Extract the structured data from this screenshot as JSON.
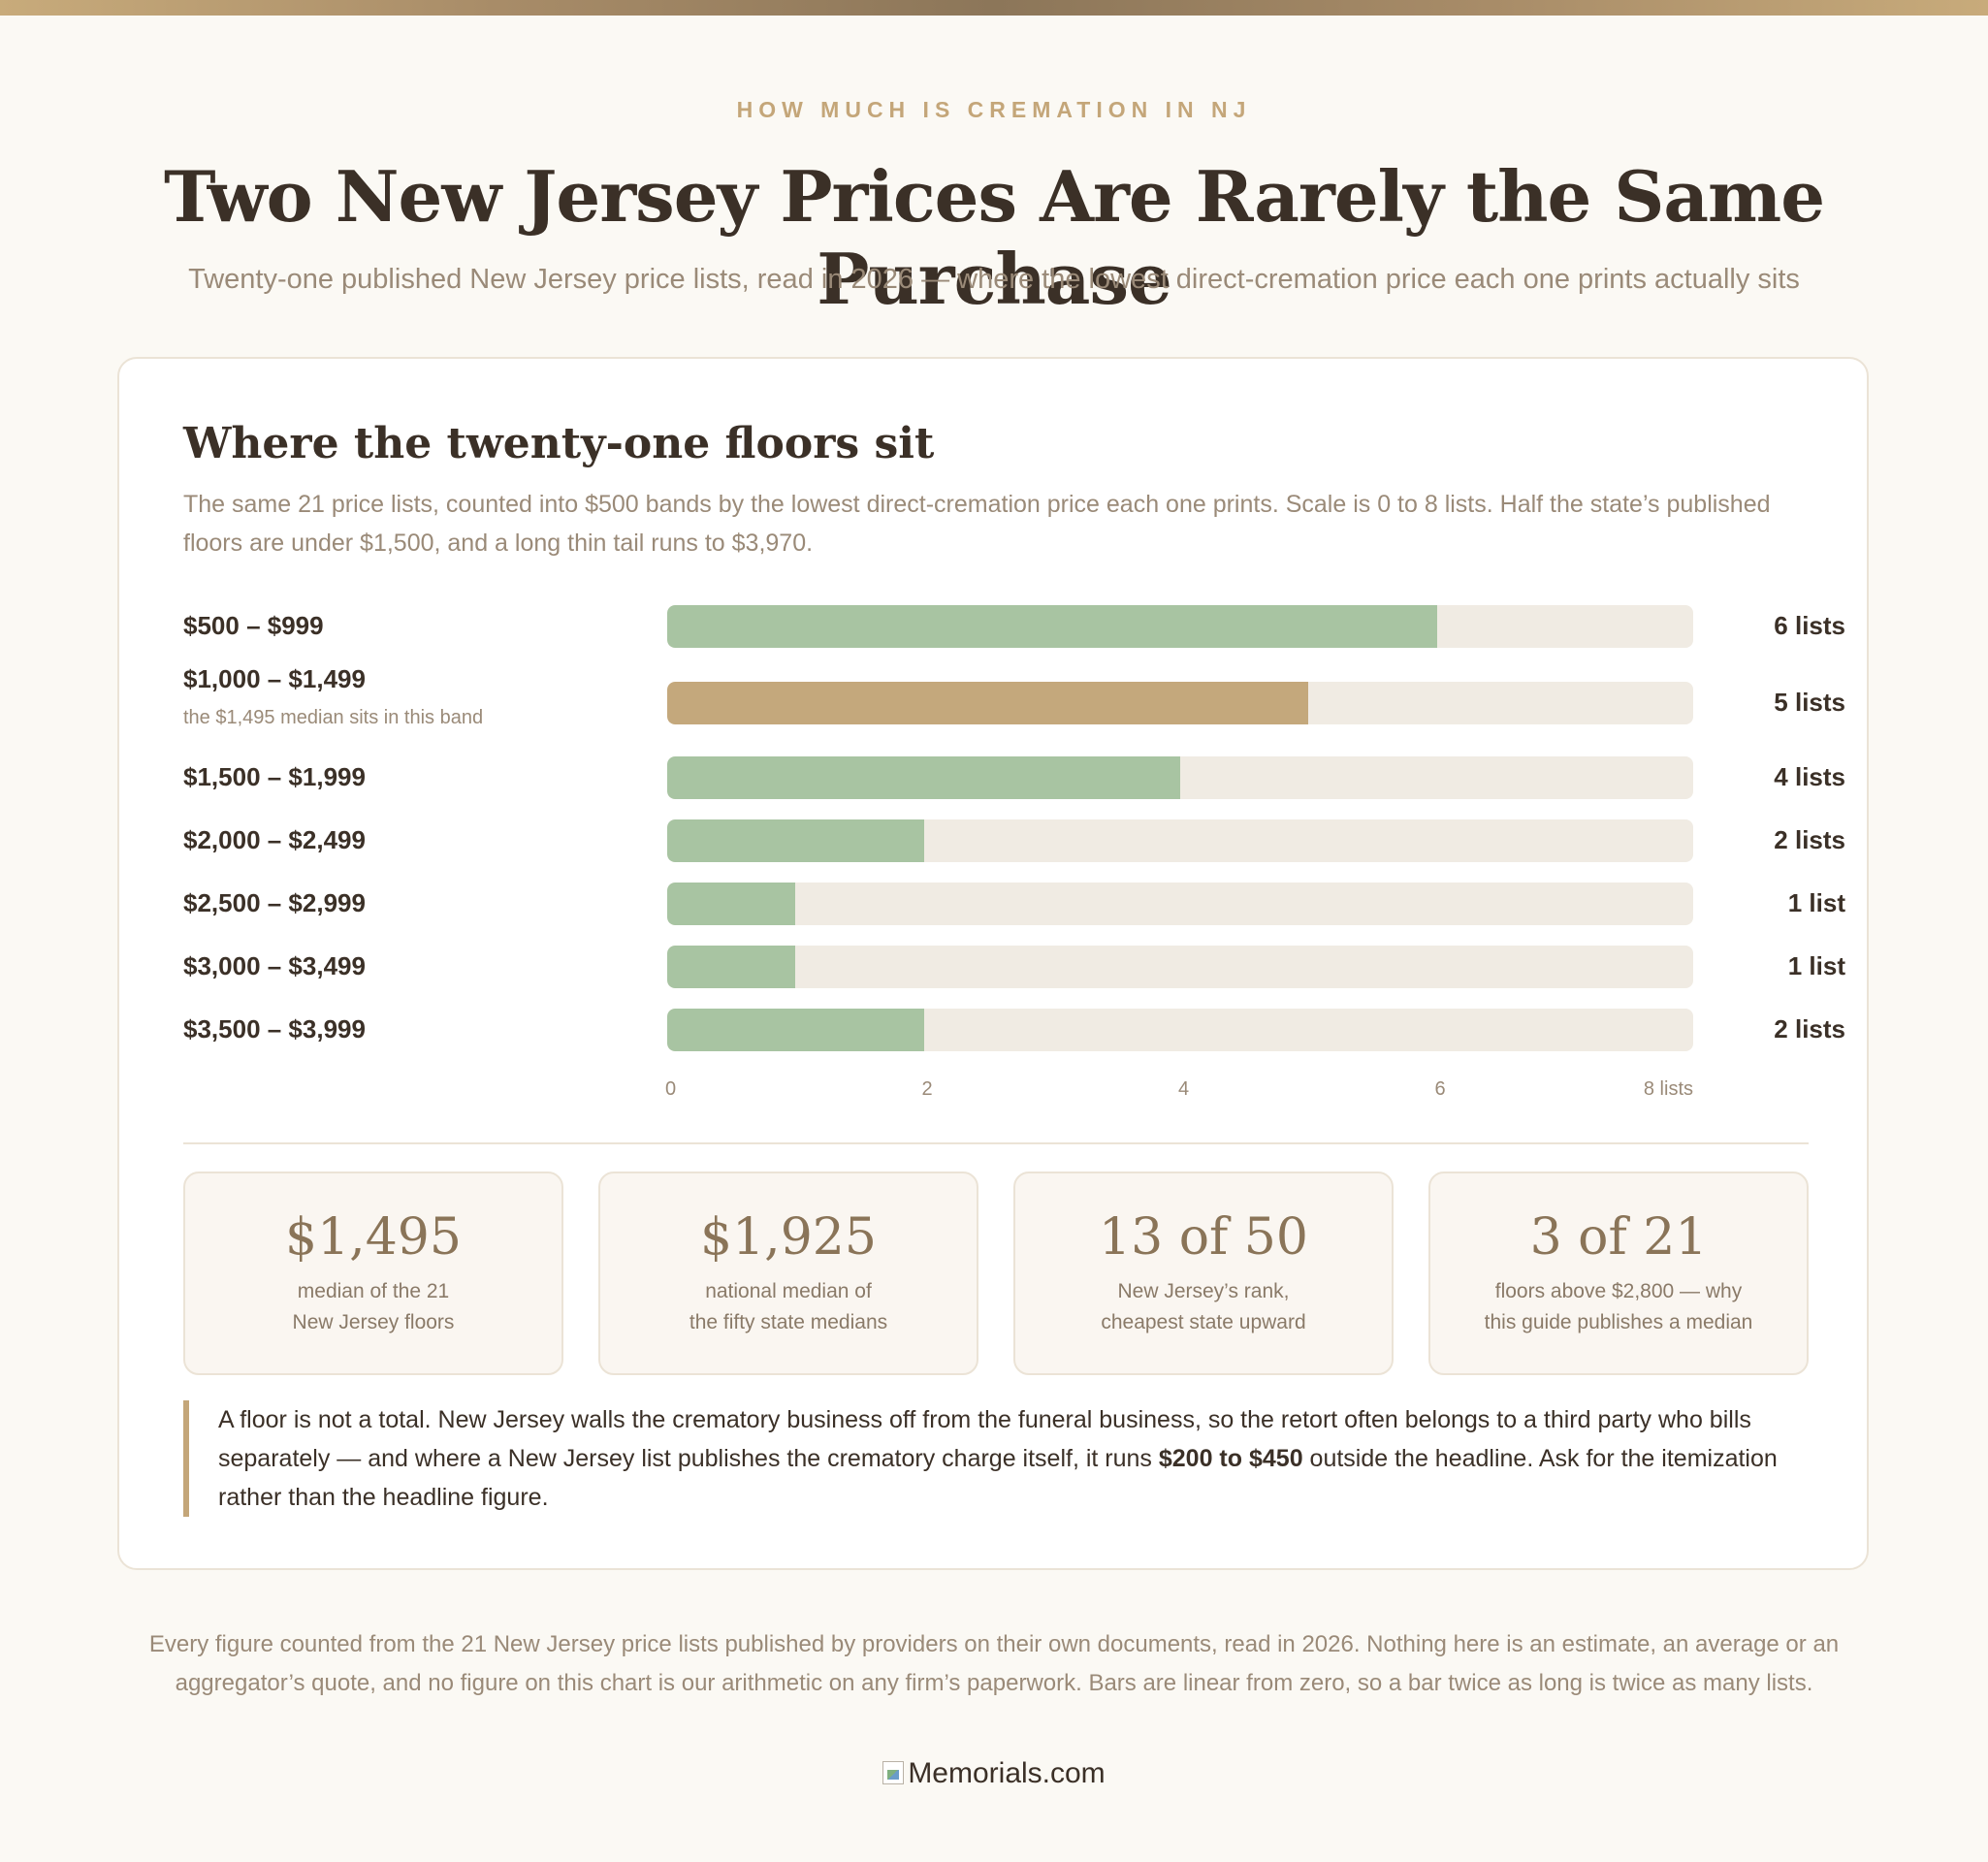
{
  "header": {
    "eyebrow": "HOW MUCH IS CREMATION IN NJ",
    "title": "Two New Jersey Prices Are Rarely the Same Purchase",
    "subtitle": "Twenty-one published New Jersey price lists, read in 2026 — where the lowest direct-cremation price each one prints actually sits"
  },
  "card": {
    "title": "Where the twenty-one floors sit",
    "description": "The same 21 price lists, counted into $500 bands by the lowest direct-cremation price each one prints. Scale is 0 to 8 lists. Half the state’s published floors are under $1,500, and a long thin tail runs to $3,970."
  },
  "chart_data": {
    "type": "bar",
    "orientation": "horizontal",
    "categories": [
      "$500 – $999",
      "$1,000 – $1,499",
      "$1,500 – $1,999",
      "$2,000 – $2,499",
      "$2,500 – $2,999",
      "$3,000 – $3,499",
      "$3,500 – $3,999"
    ],
    "values": [
      6,
      5,
      4,
      2,
      1,
      1,
      2
    ],
    "value_labels": [
      "6 lists",
      "5 lists",
      "4 lists",
      "2 lists",
      "1 list",
      "1 list",
      "2 lists"
    ],
    "annotations": [
      {
        "category": "$1,000 – $1,499",
        "text": "the $1,495 median sits in this band"
      }
    ],
    "highlight_index": 1,
    "xlim": [
      0,
      8
    ],
    "x_ticks": [
      "0",
      "2",
      "4",
      "6",
      "8 lists"
    ],
    "x_tick_values": [
      0,
      2,
      4,
      6,
      8
    ],
    "colors": {
      "default": "#a8c4a2",
      "highlight": "#c4a87c",
      "track": "#f0ebe3"
    },
    "grid": false,
    "legend": "none"
  },
  "stats": [
    {
      "value": "$1,495",
      "caption_line1": "median of the 21",
      "caption_line2": "New Jersey floors"
    },
    {
      "value": "$1,925",
      "caption_line1": "national median of",
      "caption_line2": "the fifty state medians"
    },
    {
      "value": "13 of 50",
      "caption_line1": "New Jersey’s rank,",
      "caption_line2": "cheapest state upward"
    },
    {
      "value": "3 of 21",
      "caption_line1": "floors above $2,800 — why",
      "caption_line2": "this guide publishes a median"
    }
  ],
  "note": {
    "before": "A floor is not a total. New Jersey walls the crematory business off from the funeral business, so the retort often belongs to a third party who bills separately — and where a New Jersey list publishes the crematory charge itself, it runs ",
    "bold": "$200 to $450",
    "after": " outside the headline. Ask for the itemization rather than the headline figure."
  },
  "footer": {
    "text": "Every figure counted from the 21 New Jersey price lists published by providers on their own documents, read in 2026. Nothing here is an estimate, an average or an aggregator’s quote, and no figure on this chart is our arithmetic on any firm’s paperwork. Bars are linear from zero, so a bar twice as long is twice as many lists."
  },
  "logo": {
    "alt_text": "Memorials.com",
    "icon": "broken-image-icon"
  }
}
